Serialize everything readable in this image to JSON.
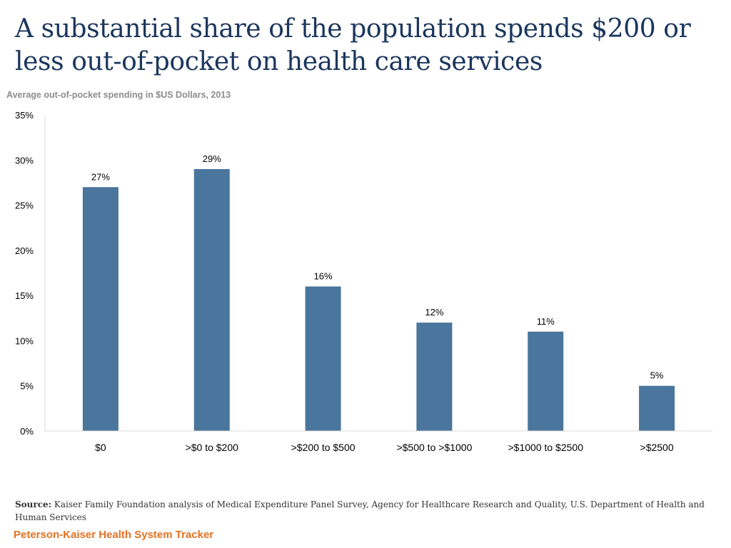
{
  "title": "A substantial share of the population spends $200 or less out-of-pocket on health care services",
  "source_label": "Source:",
  "source_text": "Kaiser Family Foundation analysis of Medical Expenditure Panel Survey, Agency for Healthcare Research and Quality, U.S. Department of Health and Human Services",
  "brand": "Peterson-Kaiser Health System Tracker",
  "colors": {
    "bar": "#4a759c",
    "title": "#1b365d",
    "brand": "#e37222",
    "subtitle": "#8c8c8c"
  },
  "chart_data": {
    "type": "bar",
    "title": "Average out-of-pocket spending in $US Dollars, 2013",
    "xlabel": "",
    "ylabel": "",
    "categories": [
      "$0",
      ">$0 to $200",
      ">$200 to $500",
      ">$500 to >$1000",
      ">$1000 to $2500",
      ">$2500"
    ],
    "values": [
      27,
      29,
      16,
      12,
      11,
      5
    ],
    "value_labels": [
      "27%",
      "29%",
      "16%",
      "12%",
      "11%",
      "5%"
    ],
    "ylim": [
      0,
      35
    ],
    "yticks": [
      0,
      5,
      10,
      15,
      20,
      25,
      30,
      35
    ],
    "ytick_labels": [
      "0%",
      "5%",
      "10%",
      "15%",
      "20%",
      "25%",
      "30%",
      "35%"
    ],
    "grid": false
  }
}
